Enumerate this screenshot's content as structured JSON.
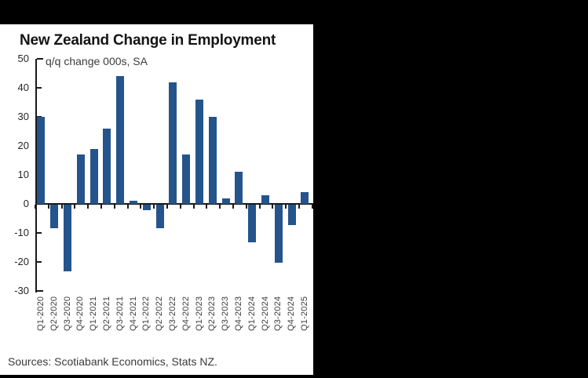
{
  "window": {
    "background_color": "#000000",
    "panel_color": "#ffffff"
  },
  "chart_data": {
    "type": "bar",
    "title": "New Zealand Change in Employment",
    "subtitle": "q/q change 000s, SA",
    "source": "Sources: Scotiabank Economics, Stats NZ.",
    "categories": [
      "Q1-2020",
      "Q2-2020",
      "Q3-2020",
      "Q4-2020",
      "Q1-2021",
      "Q2-2021",
      "Q3-2021",
      "Q4-2021",
      "Q1-2022",
      "Q2-2022",
      "Q3-2022",
      "Q4-2022",
      "Q1-2023",
      "Q2-2023",
      "Q3-2023",
      "Q4-2023",
      "Q1-2024",
      "Q2-2024",
      "Q3-2024",
      "Q4-2024",
      "Q1-2025"
    ],
    "values": [
      30,
      -8,
      -23,
      17,
      19,
      26,
      44,
      1,
      -2,
      -8,
      42,
      17,
      36,
      30,
      2,
      11,
      -13,
      3,
      -20,
      -7,
      4
    ],
    "xlabel": "",
    "ylabel": "",
    "ylim": [
      -30,
      50
    ],
    "yticks": [
      50,
      40,
      30,
      20,
      10,
      0,
      -10,
      -20,
      -30
    ],
    "grid": false,
    "legend": null,
    "bar_color": "#24548B",
    "axis_color": "#1a1a1a"
  }
}
